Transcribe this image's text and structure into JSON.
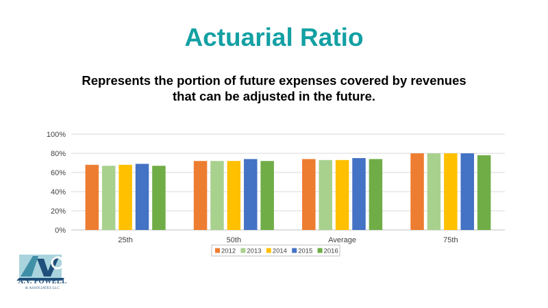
{
  "header": {
    "title": "Actuarial Ratio",
    "subtitle_line1": "Represents the portion of future expenses covered by revenues",
    "subtitle_line2": "that can be adjusted in the future."
  },
  "logo": {
    "line1": "A.V. POWELL",
    "line2": "& ASSOCIATES LLC",
    "colors": {
      "dark": "#1f4f7a",
      "mid": "#3f8fa6",
      "light": "#a9d4de"
    }
  },
  "chart_data": {
    "type": "bar",
    "categories": [
      "25th",
      "50th",
      "Average",
      "75th"
    ],
    "series": [
      {
        "name": "2012",
        "color": "#ed7d31",
        "values": [
          68,
          72,
          74,
          80
        ]
      },
      {
        "name": "2013",
        "color": "#a9d18e",
        "values": [
          67,
          72,
          73,
          80
        ]
      },
      {
        "name": "2014",
        "color": "#ffc000",
        "values": [
          68,
          72,
          73,
          80
        ]
      },
      {
        "name": "2015",
        "color": "#4472c4",
        "values": [
          69,
          74,
          75,
          80
        ]
      },
      {
        "name": "2016",
        "color": "#70ad47",
        "values": [
          67,
          72,
          74,
          78
        ]
      }
    ],
    "ylim": [
      0,
      100
    ],
    "yticks": [
      "0%",
      "20%",
      "40%",
      "60%",
      "80%",
      "100%"
    ],
    "grid": true,
    "legend_position": "bottom"
  }
}
